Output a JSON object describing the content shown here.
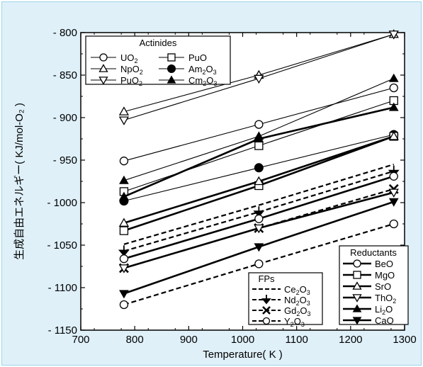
{
  "chart_data": {
    "type": "line",
    "xlabel": "Temperature( K )",
    "ylabel": "生成自由エネルギー( KJ/mol-O₂ )",
    "xlim": [
      700,
      1300
    ],
    "ylim": [
      -1150,
      -800
    ],
    "xticks": [
      "700",
      "800",
      "900",
      "1000",
      "1100",
      "1200",
      "1300"
    ],
    "yticks": [
      "- 800",
      "- 850",
      "- 900",
      "- 950",
      "- 1000",
      "- 1050",
      "- 1100",
      "- 1150"
    ],
    "grid": false,
    "legends": [
      {
        "title": "Actinides",
        "position": "top-left",
        "entries": [
          "UO₂",
          "PuO",
          "NpO₂",
          "Am₂O₃",
          "PuO₂",
          "Cm₂O₃"
        ]
      },
      {
        "title": "FPs",
        "position": "bottom-center",
        "entries": [
          "Ce₂O₃",
          "Nd₂O₃",
          "Gd₂O₃",
          "Y₂O₃"
        ]
      },
      {
        "title": "Reductants",
        "position": "bottom-right",
        "entries": [
          "BeO",
          "MgO",
          "SrO",
          "ThO₂",
          "Li₂O",
          "CaO"
        ]
      }
    ],
    "series": [
      {
        "name": "UO₂",
        "group": "Actinides",
        "marker": "circle-open",
        "style": "thin",
        "x": [
          780,
          1030,
          1280
        ],
        "y": [
          -951,
          -908,
          -865
        ]
      },
      {
        "name": "PuO",
        "group": "Actinides",
        "marker": "square-open",
        "style": "thin",
        "x": [
          780,
          1030,
          1280
        ],
        "y": [
          -987,
          -933,
          -880
        ]
      },
      {
        "name": "NpO₂",
        "group": "Actinides",
        "marker": "triangle-up-open",
        "style": "thin",
        "x": [
          780,
          1030,
          1280
        ],
        "y": [
          -893,
          -850,
          -802
        ]
      },
      {
        "name": "Am₂O₃",
        "group": "Actinides",
        "marker": "circle-filled",
        "style": "thin",
        "x": [
          780,
          1030,
          1280
        ],
        "y": [
          -998,
          -959,
          -920
        ]
      },
      {
        "name": "PuO₂",
        "group": "Actinides",
        "marker": "triangle-down-open",
        "style": "thin",
        "x": [
          780,
          1030,
          1280
        ],
        "y": [
          -903,
          -854,
          -802
        ]
      },
      {
        "name": "Cm₂O₃",
        "group": "Actinides",
        "marker": "triangle-up-filled",
        "style": "thin",
        "x": [
          780,
          1030,
          1280
        ],
        "y": [
          -974,
          -922,
          -854
        ]
      },
      {
        "name": "Ce₂O₃",
        "group": "FPs",
        "marker": "none",
        "style": "dashed",
        "x": [
          780,
          1030,
          1280
        ],
        "y": [
          -1049,
          -1003,
          -955
        ]
      },
      {
        "name": "Nd₂O₃",
        "group": "FPs",
        "marker": "arrow-down",
        "style": "dashed",
        "x": [
          780,
          1030,
          1280
        ],
        "y": [
          -1057,
          -1011,
          -963
        ]
      },
      {
        "name": "Gd₂O₃",
        "group": "FPs",
        "marker": "cross",
        "style": "dashed",
        "x": [
          780,
          1030,
          1280
        ],
        "y": [
          -1077,
          -1030,
          -984
        ]
      },
      {
        "name": "Y₂O₃",
        "group": "FPs",
        "marker": "circle-open",
        "style": "dashed",
        "x": [
          780,
          1030,
          1280
        ],
        "y": [
          -1120,
          -1072,
          -1025
        ]
      },
      {
        "name": "BeO",
        "group": "Reductants",
        "marker": "circle-open",
        "style": "bold",
        "x": [
          780,
          1030,
          1280
        ],
        "y": [
          -1066,
          -1019,
          -969
        ]
      },
      {
        "name": "MgO",
        "group": "Reductants",
        "marker": "square-open",
        "style": "bold",
        "x": [
          780,
          1030,
          1280
        ],
        "y": [
          -1033,
          -980,
          -922
        ]
      },
      {
        "name": "SrO",
        "group": "Reductants",
        "marker": "triangle-up-open",
        "style": "bold",
        "x": [
          780,
          1030,
          1280
        ],
        "y": [
          -1024,
          -975,
          -922
        ]
      },
      {
        "name": "ThO₂",
        "group": "Reductants",
        "marker": "triangle-down-open",
        "style": "bold",
        "x": [
          780,
          1030,
          1280
        ],
        "y": [
          -1077,
          -1030,
          -988
        ]
      },
      {
        "name": "Li₂O",
        "group": "Reductants",
        "marker": "triangle-up-filled",
        "style": "bold",
        "x": [
          780,
          1030,
          1280
        ],
        "y": [
          -993,
          -925,
          -888
        ]
      },
      {
        "name": "CaO",
        "group": "Reductants",
        "marker": "triangle-down-filled",
        "style": "bold",
        "x": [
          780,
          1030,
          1280
        ],
        "y": [
          -1107,
          -1052,
          -999
        ]
      }
    ]
  }
}
